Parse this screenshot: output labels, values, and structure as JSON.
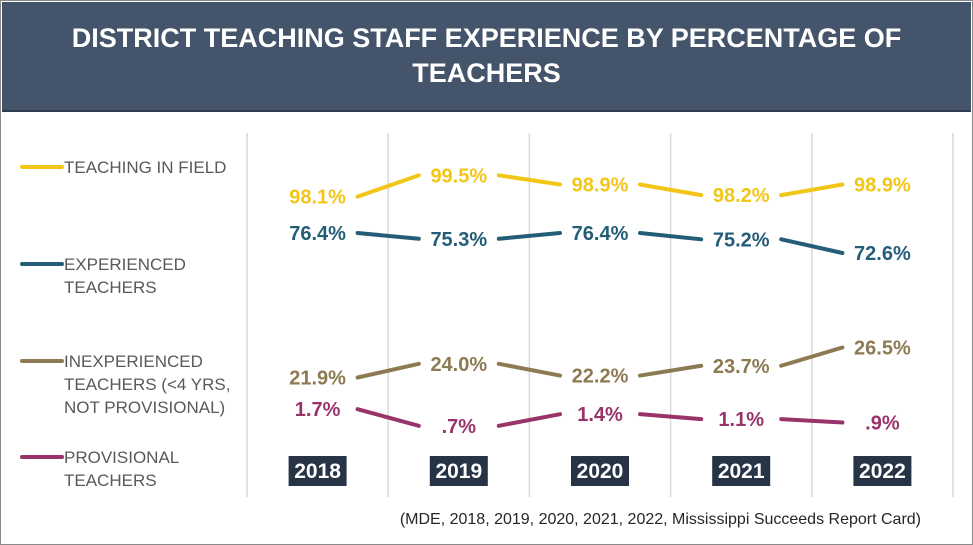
{
  "title": "DISTRICT TEACHING STAFF EXPERIENCE BY PERCENTAGE OF TEACHERS",
  "source": "(MDE, 2018, 2019, 2020, 2021, 2022, Mississippi Succeeds Report Card)",
  "chart_data": {
    "type": "line",
    "title": "DISTRICT TEACHING STAFF EXPERIENCE BY PERCENTAGE OF TEACHERS",
    "categories": [
      "2018",
      "2019",
      "2020",
      "2021",
      "2022"
    ],
    "legend_position": "left",
    "grid": "vertical",
    "series": [
      {
        "name": "TEACHING IN FIELD",
        "color": "#f2c618",
        "values": [
          98.1,
          99.5,
          98.9,
          98.2,
          98.9
        ],
        "labels": [
          "98.1%",
          "99.5%",
          "98.9%",
          "98.2%",
          "98.9%"
        ]
      },
      {
        "name": "EXPERIENCED TEACHERS",
        "color": "#245d78",
        "values": [
          76.4,
          75.3,
          76.4,
          75.2,
          72.6
        ],
        "labels": [
          "76.4%",
          "75.3%",
          "76.4%",
          "75.2%",
          "72.6%"
        ]
      },
      {
        "name": "INEXPERIENCED TEACHERS (<4 YRS, NOT PROVISIONAL)",
        "color": "#8c7a52",
        "values": [
          21.9,
          24.0,
          22.2,
          23.7,
          26.5
        ],
        "labels": [
          "21.9%",
          "24.0%",
          "22.2%",
          "23.7%",
          "26.5%"
        ]
      },
      {
        "name": "PROVISIONAL TEACHERS",
        "color": "#99346a",
        "values": [
          1.7,
          0.7,
          1.4,
          1.1,
          0.9
        ],
        "labels": [
          "1.7%",
          ".7%",
          "1.4%",
          "1.1%",
          ".9%"
        ]
      }
    ]
  }
}
